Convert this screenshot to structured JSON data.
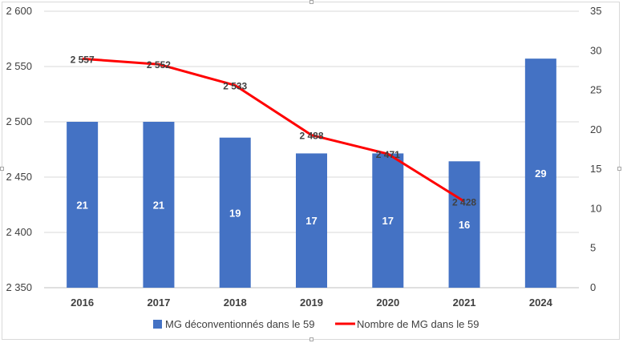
{
  "chart_data": {
    "type": "bar+line",
    "categories": [
      "2016",
      "2017",
      "2018",
      "2019",
      "2020",
      "2021",
      "2024"
    ],
    "y_left": {
      "ylim": [
        2350,
        2600
      ],
      "ticks": [
        "2 350",
        "2 400",
        "2 450",
        "2 500",
        "2 550",
        "2 600"
      ]
    },
    "y_right": {
      "ylim": [
        0,
        35
      ],
      "ticks": [
        "0",
        "5",
        "10",
        "15",
        "20",
        "25",
        "30",
        "35"
      ]
    },
    "series": [
      {
        "name": "MG déconventionnés dans le 59",
        "type": "bar",
        "axis": "right",
        "color": "#4472c4",
        "values": [
          21,
          21,
          19,
          17,
          17,
          16,
          29
        ],
        "labels": [
          "21",
          "21",
          "19",
          "17",
          "17",
          "16",
          "29"
        ]
      },
      {
        "name": "Nombre de MG dans le 59",
        "type": "line",
        "axis": "left",
        "color": "#ff0000",
        "values": [
          2557,
          2552,
          2533,
          2488,
          2471,
          2428,
          null
        ],
        "labels": [
          "2 557",
          "2 552",
          "2 533",
          "2 488",
          "2 471",
          "2 428",
          ""
        ]
      }
    ],
    "grid": true,
    "legend": "bottom"
  }
}
